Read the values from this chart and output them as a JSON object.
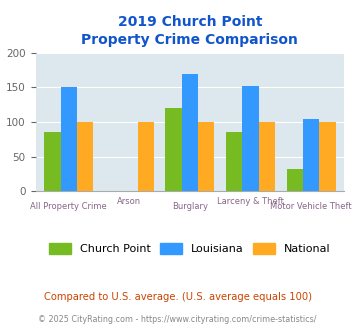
{
  "title_line1": "2019 Church Point",
  "title_line2": "Property Crime Comparison",
  "categories": [
    "All Property Crime",
    "Arson",
    "Burglary",
    "Larceny & Theft",
    "Motor Vehicle Theft"
  ],
  "church_point": [
    85,
    0,
    120,
    85,
    32
  ],
  "louisiana": [
    150,
    0,
    170,
    152,
    105
  ],
  "national": [
    100,
    100,
    100,
    100,
    100
  ],
  "bar_color_cp": "#77bb22",
  "bar_color_la": "#3399ff",
  "bar_color_na": "#ffaa22",
  "ylim": [
    0,
    200
  ],
  "yticks": [
    0,
    50,
    100,
    150,
    200
  ],
  "bg_color": "#dce8ed",
  "title_color": "#1155cc",
  "xlabel_color_odd": "#886688",
  "xlabel_color_even": "#886688",
  "legend_labels": [
    "Church Point",
    "Louisiana",
    "National"
  ],
  "footnote1": "Compared to U.S. average. (U.S. average equals 100)",
  "footnote2": "© 2025 CityRating.com - https://www.cityrating.com/crime-statistics/",
  "footnote1_color": "#cc4400",
  "footnote2_color": "#888888"
}
